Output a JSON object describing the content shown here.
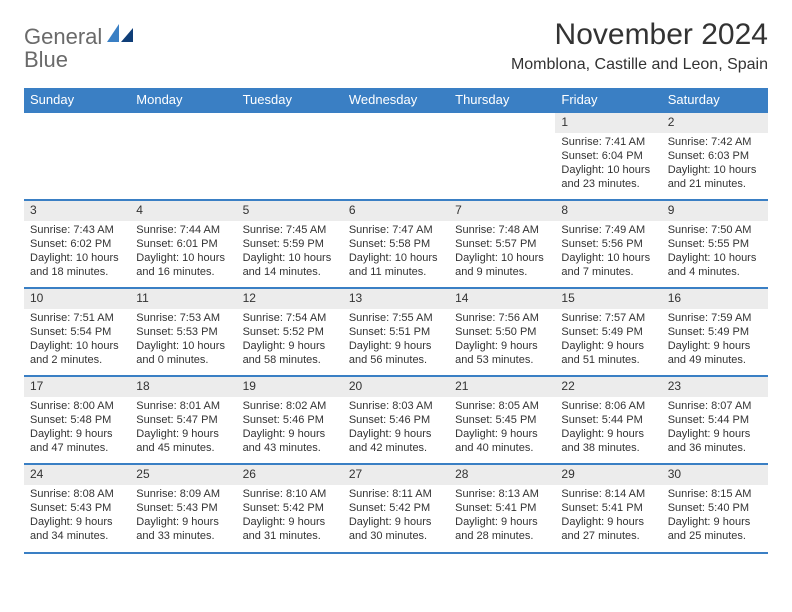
{
  "logo": {
    "word1": "General",
    "word2": "Blue"
  },
  "title": "November 2024",
  "location": "Momblona, Castille and Leon, Spain",
  "colors": {
    "header_bg": "#3a7fc4",
    "header_text": "#ffffff",
    "daynum_bg": "#ececec",
    "rule": "#3a7fc4",
    "text": "#333333",
    "logo_gray": "#6a6a6a",
    "logo_blue": "#3a7fc4",
    "page_bg": "#ffffff"
  },
  "typography": {
    "title_fontsize": 30,
    "location_fontsize": 16,
    "dayheader_fontsize": 13,
    "daynum_fontsize": 12,
    "detail_fontsize": 11
  },
  "day_headers": [
    "Sunday",
    "Monday",
    "Tuesday",
    "Wednesday",
    "Thursday",
    "Friday",
    "Saturday"
  ],
  "weeks": [
    [
      null,
      null,
      null,
      null,
      null,
      {
        "n": "1",
        "sunrise": "Sunrise: 7:41 AM",
        "sunset": "Sunset: 6:04 PM",
        "daylight": "Daylight: 10 hours and 23 minutes."
      },
      {
        "n": "2",
        "sunrise": "Sunrise: 7:42 AM",
        "sunset": "Sunset: 6:03 PM",
        "daylight": "Daylight: 10 hours and 21 minutes."
      }
    ],
    [
      {
        "n": "3",
        "sunrise": "Sunrise: 7:43 AM",
        "sunset": "Sunset: 6:02 PM",
        "daylight": "Daylight: 10 hours and 18 minutes."
      },
      {
        "n": "4",
        "sunrise": "Sunrise: 7:44 AM",
        "sunset": "Sunset: 6:01 PM",
        "daylight": "Daylight: 10 hours and 16 minutes."
      },
      {
        "n": "5",
        "sunrise": "Sunrise: 7:45 AM",
        "sunset": "Sunset: 5:59 PM",
        "daylight": "Daylight: 10 hours and 14 minutes."
      },
      {
        "n": "6",
        "sunrise": "Sunrise: 7:47 AM",
        "sunset": "Sunset: 5:58 PM",
        "daylight": "Daylight: 10 hours and 11 minutes."
      },
      {
        "n": "7",
        "sunrise": "Sunrise: 7:48 AM",
        "sunset": "Sunset: 5:57 PM",
        "daylight": "Daylight: 10 hours and 9 minutes."
      },
      {
        "n": "8",
        "sunrise": "Sunrise: 7:49 AM",
        "sunset": "Sunset: 5:56 PM",
        "daylight": "Daylight: 10 hours and 7 minutes."
      },
      {
        "n": "9",
        "sunrise": "Sunrise: 7:50 AM",
        "sunset": "Sunset: 5:55 PM",
        "daylight": "Daylight: 10 hours and 4 minutes."
      }
    ],
    [
      {
        "n": "10",
        "sunrise": "Sunrise: 7:51 AM",
        "sunset": "Sunset: 5:54 PM",
        "daylight": "Daylight: 10 hours and 2 minutes."
      },
      {
        "n": "11",
        "sunrise": "Sunrise: 7:53 AM",
        "sunset": "Sunset: 5:53 PM",
        "daylight": "Daylight: 10 hours and 0 minutes."
      },
      {
        "n": "12",
        "sunrise": "Sunrise: 7:54 AM",
        "sunset": "Sunset: 5:52 PM",
        "daylight": "Daylight: 9 hours and 58 minutes."
      },
      {
        "n": "13",
        "sunrise": "Sunrise: 7:55 AM",
        "sunset": "Sunset: 5:51 PM",
        "daylight": "Daylight: 9 hours and 56 minutes."
      },
      {
        "n": "14",
        "sunrise": "Sunrise: 7:56 AM",
        "sunset": "Sunset: 5:50 PM",
        "daylight": "Daylight: 9 hours and 53 minutes."
      },
      {
        "n": "15",
        "sunrise": "Sunrise: 7:57 AM",
        "sunset": "Sunset: 5:49 PM",
        "daylight": "Daylight: 9 hours and 51 minutes."
      },
      {
        "n": "16",
        "sunrise": "Sunrise: 7:59 AM",
        "sunset": "Sunset: 5:49 PM",
        "daylight": "Daylight: 9 hours and 49 minutes."
      }
    ],
    [
      {
        "n": "17",
        "sunrise": "Sunrise: 8:00 AM",
        "sunset": "Sunset: 5:48 PM",
        "daylight": "Daylight: 9 hours and 47 minutes."
      },
      {
        "n": "18",
        "sunrise": "Sunrise: 8:01 AM",
        "sunset": "Sunset: 5:47 PM",
        "daylight": "Daylight: 9 hours and 45 minutes."
      },
      {
        "n": "19",
        "sunrise": "Sunrise: 8:02 AM",
        "sunset": "Sunset: 5:46 PM",
        "daylight": "Daylight: 9 hours and 43 minutes."
      },
      {
        "n": "20",
        "sunrise": "Sunrise: 8:03 AM",
        "sunset": "Sunset: 5:46 PM",
        "daylight": "Daylight: 9 hours and 42 minutes."
      },
      {
        "n": "21",
        "sunrise": "Sunrise: 8:05 AM",
        "sunset": "Sunset: 5:45 PM",
        "daylight": "Daylight: 9 hours and 40 minutes."
      },
      {
        "n": "22",
        "sunrise": "Sunrise: 8:06 AM",
        "sunset": "Sunset: 5:44 PM",
        "daylight": "Daylight: 9 hours and 38 minutes."
      },
      {
        "n": "23",
        "sunrise": "Sunrise: 8:07 AM",
        "sunset": "Sunset: 5:44 PM",
        "daylight": "Daylight: 9 hours and 36 minutes."
      }
    ],
    [
      {
        "n": "24",
        "sunrise": "Sunrise: 8:08 AM",
        "sunset": "Sunset: 5:43 PM",
        "daylight": "Daylight: 9 hours and 34 minutes."
      },
      {
        "n": "25",
        "sunrise": "Sunrise: 8:09 AM",
        "sunset": "Sunset: 5:43 PM",
        "daylight": "Daylight: 9 hours and 33 minutes."
      },
      {
        "n": "26",
        "sunrise": "Sunrise: 8:10 AM",
        "sunset": "Sunset: 5:42 PM",
        "daylight": "Daylight: 9 hours and 31 minutes."
      },
      {
        "n": "27",
        "sunrise": "Sunrise: 8:11 AM",
        "sunset": "Sunset: 5:42 PM",
        "daylight": "Daylight: 9 hours and 30 minutes."
      },
      {
        "n": "28",
        "sunrise": "Sunrise: 8:13 AM",
        "sunset": "Sunset: 5:41 PM",
        "daylight": "Daylight: 9 hours and 28 minutes."
      },
      {
        "n": "29",
        "sunrise": "Sunrise: 8:14 AM",
        "sunset": "Sunset: 5:41 PM",
        "daylight": "Daylight: 9 hours and 27 minutes."
      },
      {
        "n": "30",
        "sunrise": "Sunrise: 8:15 AM",
        "sunset": "Sunset: 5:40 PM",
        "daylight": "Daylight: 9 hours and 25 minutes."
      }
    ]
  ]
}
